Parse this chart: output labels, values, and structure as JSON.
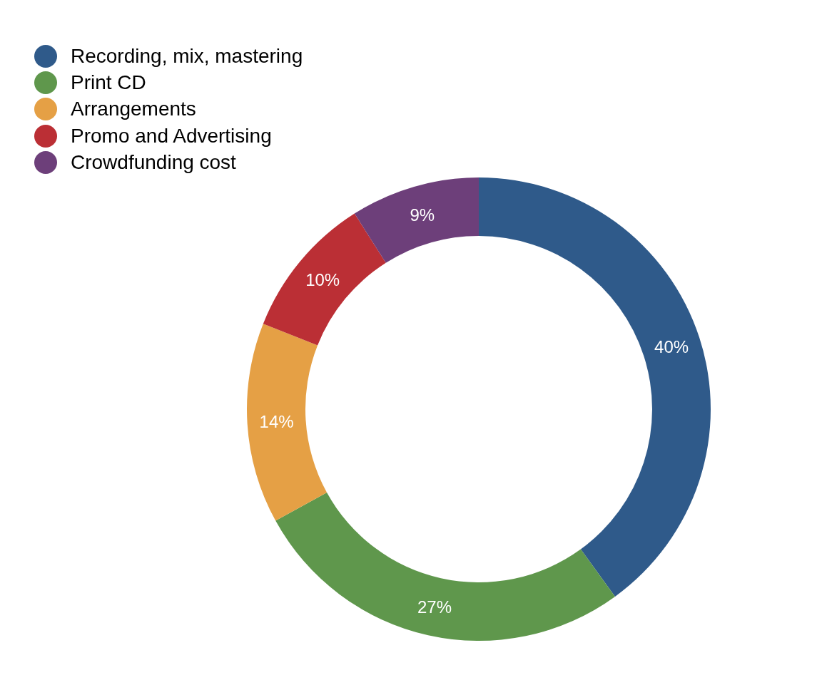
{
  "chart_data": {
    "type": "donut",
    "categories": [
      "Recording, mix, mastering",
      "Print CD",
      "Arrangements",
      "Promo and Advertising",
      "Crowdfunding cost"
    ],
    "values": [
      40,
      27,
      14,
      10,
      9
    ],
    "colors": [
      "#2f5a8a",
      "#5f974c",
      "#e5a045",
      "#bb2f35",
      "#6d3f7a"
    ],
    "value_labels": [
      "40%",
      "27%",
      "14%",
      "10%",
      "9%"
    ],
    "legend": "top left"
  }
}
